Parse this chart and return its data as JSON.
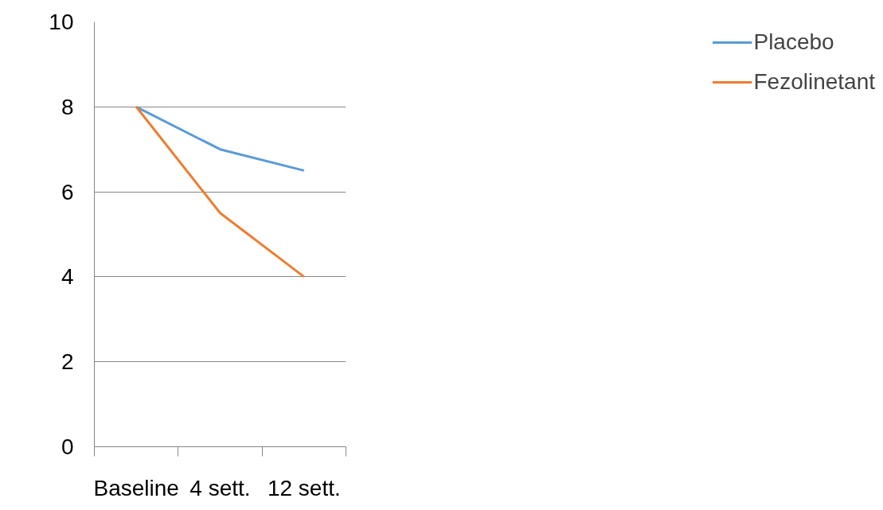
{
  "chart_data": {
    "type": "line",
    "categories": [
      "Baseline",
      "4 sett.",
      "12 sett."
    ],
    "series": [
      {
        "name": "Placebo",
        "color": "#5b9bd5",
        "values": [
          8,
          7,
          6.5
        ]
      },
      {
        "name": "Fezolinetant",
        "color": "#ed7d31",
        "values": [
          8,
          5.5,
          4
        ]
      }
    ],
    "ylim": [
      0,
      10
    ],
    "yticks": [
      0,
      2,
      4,
      6,
      8,
      10
    ],
    "grid": "y",
    "legend": "right",
    "marker": "none",
    "line_style": "solid"
  }
}
